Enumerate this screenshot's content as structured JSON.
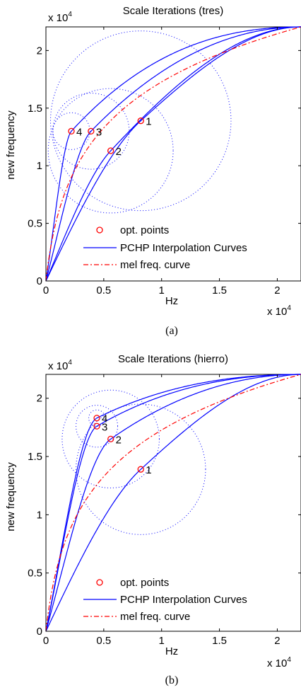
{
  "charts": [
    {
      "panel_label": "(a)",
      "title": "Scale Iterations (tres)",
      "xlabel": "Hz",
      "ylabel": "new frequency",
      "x_exponent_label": "x 10",
      "y_exponent_label": "x 10",
      "exponent": "4",
      "xticks": [
        "0",
        "0.5",
        "1",
        "1.5",
        "2"
      ],
      "yticks": [
        "0",
        "0.5",
        "1",
        "1.5",
        "2"
      ],
      "legend": {
        "points_label": "opt. points",
        "curves_label": "PCHP Interpolation Curves",
        "mel_label": "mel freq. curve"
      }
    },
    {
      "panel_label": "(b)",
      "title": "Scale Iterations (hierro)",
      "xlabel": "Hz",
      "ylabel": "new frequency",
      "x_exponent_label": "x 10",
      "y_exponent_label": "x 10",
      "exponent": "4",
      "xticks": [
        "0",
        "0.5",
        "1",
        "1.5",
        "2"
      ],
      "yticks": [
        "0",
        "0.5",
        "1",
        "1.5",
        "2"
      ],
      "legend": {
        "points_label": "opt. points",
        "curves_label": "PCHP Interpolation Curves",
        "mel_label": "mel freq. curve"
      }
    }
  ],
  "chart_data": [
    {
      "type": "line",
      "title": "Scale Iterations (tres)",
      "xlabel": "Hz",
      "ylabel": "new frequency",
      "xlim": [
        0,
        22050
      ],
      "ylim": [
        0,
        22050
      ],
      "xticks": [
        0,
        5000,
        10000,
        15000,
        20000
      ],
      "yticks": [
        0,
        5000,
        10000,
        15000,
        20000
      ],
      "colors": {
        "points": "#ff0000",
        "curves": "#0000ff",
        "mel": "#ff0000",
        "circles": "#0000ff"
      },
      "opt_points": [
        {
          "label": "1",
          "x": 8200,
          "y": 13900
        },
        {
          "label": "2",
          "x": 5600,
          "y": 11300
        },
        {
          "label": "3",
          "x": 3900,
          "y": 13000
        },
        {
          "label": "4",
          "x": 2200,
          "y": 13000
        }
      ],
      "search_circles": [
        {
          "cx": 8200,
          "cy": 13900,
          "r": 7800
        },
        {
          "cx": 5600,
          "cy": 11300,
          "r": 5400
        },
        {
          "cx": 3900,
          "cy": 13000,
          "r": 3300
        },
        {
          "cx": 2200,
          "cy": 13000,
          "r": 1600
        }
      ],
      "series": [
        {
          "name": "PCHP Interpolation Curves",
          "style": "solid",
          "anchor_x": 8200,
          "anchor_y": 13900
        },
        {
          "style": "solid",
          "anchor_x": 5600,
          "anchor_y": 11300
        },
        {
          "style": "solid",
          "anchor_x": 3900,
          "anchor_y": 13000
        },
        {
          "style": "solid",
          "anchor_x": 2200,
          "anchor_y": 13000
        },
        {
          "name": "mel freq. curve",
          "style": "dashdot",
          "mel": true
        }
      ],
      "legend_position": "lower-left"
    },
    {
      "type": "line",
      "title": "Scale Iterations (hierro)",
      "xlabel": "Hz",
      "ylabel": "new frequency",
      "xlim": [
        0,
        22050
      ],
      "ylim": [
        0,
        22050
      ],
      "xticks": [
        0,
        5000,
        10000,
        15000,
        20000
      ],
      "yticks": [
        0,
        5000,
        10000,
        15000,
        20000
      ],
      "colors": {
        "points": "#ff0000",
        "curves": "#0000ff",
        "mel": "#ff0000",
        "circles": "#0000ff"
      },
      "opt_points": [
        {
          "label": "1",
          "x": 8200,
          "y": 13900
        },
        {
          "label": "2",
          "x": 5600,
          "y": 16500
        },
        {
          "label": "3",
          "x": 4400,
          "y": 17600
        },
        {
          "label": "4",
          "x": 4400,
          "y": 18300
        }
      ],
      "search_circles": [
        {
          "cx": 8200,
          "cy": 13900,
          "r": 5600
        },
        {
          "cx": 5600,
          "cy": 16500,
          "r": 4200
        },
        {
          "cx": 4400,
          "cy": 17600,
          "r": 1800
        },
        {
          "cx": 4400,
          "cy": 18300,
          "r": 700
        }
      ],
      "series": [
        {
          "name": "PCHP Interpolation Curves",
          "style": "solid",
          "anchor_x": 8200,
          "anchor_y": 13900
        },
        {
          "style": "solid",
          "anchor_x": 5600,
          "anchor_y": 16500
        },
        {
          "style": "solid",
          "anchor_x": 4400,
          "anchor_y": 17600
        },
        {
          "style": "solid",
          "anchor_x": 4400,
          "anchor_y": 18300
        },
        {
          "name": "mel freq. curve",
          "style": "dashdot",
          "mel": true
        }
      ],
      "legend_position": "lower-left"
    }
  ]
}
